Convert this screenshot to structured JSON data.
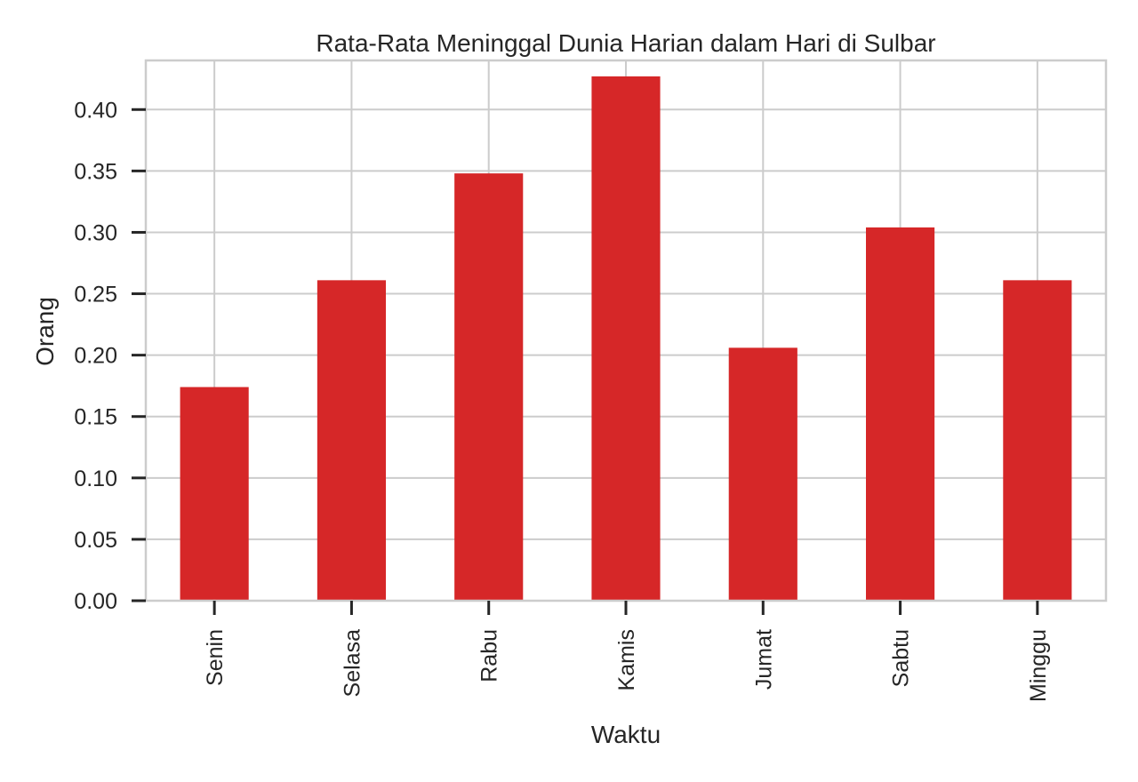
{
  "chart_data": {
    "type": "bar",
    "title": "Rata-Rata Meninggal Dunia Harian dalam Hari di Sulbar",
    "xlabel": "Waktu",
    "ylabel": "Orang",
    "categories": [
      "Senin",
      "Selasa",
      "Rabu",
      "Kamis",
      "Jumat",
      "Sabtu",
      "Minggu"
    ],
    "values": [
      0.174,
      0.261,
      0.348,
      0.427,
      0.206,
      0.304,
      0.261
    ],
    "ylim": [
      0,
      0.44
    ],
    "yticks": [
      "0.00",
      "0.05",
      "0.10",
      "0.15",
      "0.20",
      "0.25",
      "0.30",
      "0.35",
      "0.40"
    ],
    "grid": true,
    "bar_color": "#d62728",
    "grid_color": "#cccccc"
  }
}
